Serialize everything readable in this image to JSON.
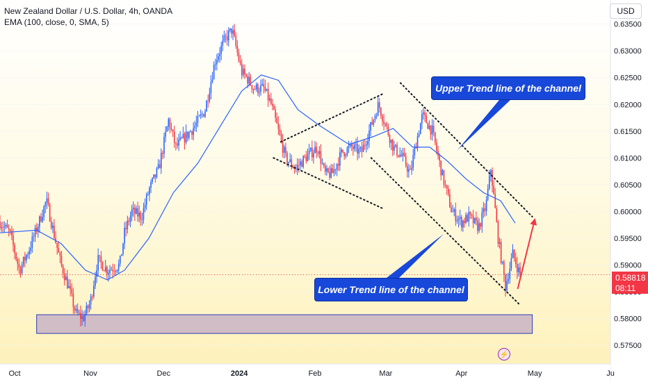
{
  "header": {
    "title": "New Zealand Dollar / U.S. Dollar, 4h, OANDA",
    "indicator": "EMA (100, close, 0, SMA, 5)"
  },
  "toolbar": {
    "currency_label": "USD"
  },
  "price_badge": {
    "price": "0.58818",
    "countdown": "08:11"
  },
  "icons": {
    "alert": "lightning-icon"
  },
  "annotations": {
    "upper_label": "Upper Trend line of the channel",
    "lower_label": "Lower Trend line of the channel"
  },
  "colors": {
    "up": "#2962ff",
    "down": "#f23645",
    "ema": "#2962ff",
    "callout": "#1848d9",
    "arrow": "#f23645",
    "zone_fill": "#c9b3c6",
    "zone_border": "#2a3db8"
  },
  "chart_data": {
    "type": "candlestick",
    "instrument": "NZD/USD",
    "timeframe": "4h",
    "x_tick_labels": [
      "Oct",
      "Nov",
      "Dec",
      "2024",
      "Feb",
      "Mar",
      "Apr",
      "May",
      "Ju"
    ],
    "y_tick_labels": [
      "0.63500",
      "0.63000",
      "0.62500",
      "0.62000",
      "0.61500",
      "0.61000",
      "0.60500",
      "0.60000",
      "0.59500",
      "0.59000",
      "0.58500",
      "0.58000",
      "0.57500"
    ],
    "y_ticks": [
      0.635,
      0.63,
      0.625,
      0.62,
      0.615,
      0.61,
      0.605,
      0.6,
      0.595,
      0.59,
      0.585,
      0.58,
      0.575
    ],
    "ylim": [
      0.5715,
      0.6395
    ],
    "x_domain": [
      "2023-09-25",
      "2024-06-01"
    ],
    "last_price": 0.58818,
    "price_path": [
      [
        "2023-09-25",
        0.598
      ],
      [
        "2023-09-29",
        0.596
      ],
      [
        "2023-10-03",
        0.589
      ],
      [
        "2023-10-07",
        0.593
      ],
      [
        "2023-10-11",
        0.598
      ],
      [
        "2023-10-14",
        0.602
      ],
      [
        "2023-10-17",
        0.596
      ],
      [
        "2023-10-20",
        0.59
      ],
      [
        "2023-10-23",
        0.586
      ],
      [
        "2023-10-26",
        0.581
      ],
      [
        "2023-10-29",
        0.58
      ],
      [
        "2023-11-01",
        0.583
      ],
      [
        "2023-11-04",
        0.591
      ],
      [
        "2023-11-08",
        0.589
      ],
      [
        "2023-11-13",
        0.59
      ],
      [
        "2023-11-15",
        0.596
      ],
      [
        "2023-11-18",
        0.6
      ],
      [
        "2023-11-22",
        0.599
      ],
      [
        "2023-11-25",
        0.604
      ],
      [
        "2023-11-29",
        0.608
      ],
      [
        "2023-12-03",
        0.617
      ],
      [
        "2023-12-06",
        0.612
      ],
      [
        "2023-12-10",
        0.614
      ],
      [
        "2023-12-14",
        0.616
      ],
      [
        "2023-12-18",
        0.619
      ],
      [
        "2023-12-22",
        0.628
      ],
      [
        "2023-12-26",
        0.632
      ],
      [
        "2023-12-29",
        0.634
      ],
      [
        "2024-01-02",
        0.626
      ],
      [
        "2024-01-04",
        0.625
      ],
      [
        "2024-01-07",
        0.623
      ],
      [
        "2024-01-11",
        0.623
      ],
      [
        "2024-01-14",
        0.62
      ],
      [
        "2024-01-17",
        0.615
      ],
      [
        "2024-01-20",
        0.61
      ],
      [
        "2024-01-24",
        0.608
      ],
      [
        "2024-01-28",
        0.61
      ],
      [
        "2024-02-02",
        0.612
      ],
      [
        "2024-02-05",
        0.607
      ],
      [
        "2024-02-08",
        0.607
      ],
      [
        "2024-02-12",
        0.611
      ],
      [
        "2024-02-16",
        0.612
      ],
      [
        "2024-02-20",
        0.611
      ],
      [
        "2024-02-24",
        0.616
      ],
      [
        "2024-02-27",
        0.62
      ],
      [
        "2024-03-01",
        0.616
      ],
      [
        "2024-03-04",
        0.612
      ],
      [
        "2024-03-08",
        0.61
      ],
      [
        "2024-03-11",
        0.607
      ],
      [
        "2024-03-13",
        0.612
      ],
      [
        "2024-03-16",
        0.618
      ],
      [
        "2024-03-20",
        0.615
      ],
      [
        "2024-03-24",
        0.607
      ],
      [
        "2024-03-28",
        0.6
      ],
      [
        "2024-04-01",
        0.598
      ],
      [
        "2024-04-04",
        0.599
      ],
      [
        "2024-04-08",
        0.597
      ],
      [
        "2024-04-11",
        0.601
      ],
      [
        "2024-04-13",
        0.608
      ],
      [
        "2024-04-16",
        0.595
      ],
      [
        "2024-04-19",
        0.586
      ],
      [
        "2024-04-22",
        0.592
      ],
      [
        "2024-04-25",
        0.58818
      ]
    ],
    "ema_path": [
      [
        "2023-09-25",
        0.596
      ],
      [
        "2023-10-10",
        0.5965
      ],
      [
        "2023-10-20",
        0.594
      ],
      [
        "2023-10-30",
        0.589
      ],
      [
        "2023-11-08",
        0.5872
      ],
      [
        "2023-11-15",
        0.589
      ],
      [
        "2023-11-25",
        0.595
      ],
      [
        "2023-12-05",
        0.6035
      ],
      [
        "2023-12-15",
        0.609
      ],
      [
        "2023-12-25",
        0.6165
      ],
      [
        "2024-01-02",
        0.6225
      ],
      [
        "2024-01-10",
        0.6255
      ],
      [
        "2024-01-17",
        0.6245
      ],
      [
        "2024-01-25",
        0.619
      ],
      [
        "2024-02-03",
        0.616
      ],
      [
        "2024-02-15",
        0.6125
      ],
      [
        "2024-02-25",
        0.614
      ],
      [
        "2024-03-04",
        0.6155
      ],
      [
        "2024-03-12",
        0.612
      ],
      [
        "2024-03-19",
        0.612
      ],
      [
        "2024-03-26",
        0.6095
      ],
      [
        "2024-04-03",
        0.606
      ],
      [
        "2024-04-10",
        0.6035
      ],
      [
        "2024-04-17",
        0.602
      ],
      [
        "2024-04-23",
        0.5978
      ]
    ],
    "channel_lines": [
      {
        "name": "flag-upper",
        "points": [
          [
            "2024-01-18",
            0.613
          ],
          [
            "2024-02-29",
            0.622
          ]
        ]
      },
      {
        "name": "flag-lower",
        "points": [
          [
            "2024-01-15",
            0.61
          ],
          [
            "2024-02-29",
            0.6005
          ]
        ]
      },
      {
        "name": "channel-upper",
        "points": [
          [
            "2024-03-07",
            0.624
          ],
          [
            "2024-04-30",
            0.599
          ]
        ]
      },
      {
        "name": "channel-lower",
        "points": [
          [
            "2024-02-24",
            0.61
          ],
          [
            "2024-04-25",
            0.5825
          ]
        ]
      }
    ],
    "support_zone": {
      "x": [
        "2023-10-10",
        "2024-04-30"
      ],
      "y": [
        0.5772,
        0.5807
      ]
    },
    "projection_arrow": {
      "from": [
        "2024-04-24",
        0.5855
      ],
      "to": [
        "2024-05-01",
        0.5985
      ]
    }
  }
}
